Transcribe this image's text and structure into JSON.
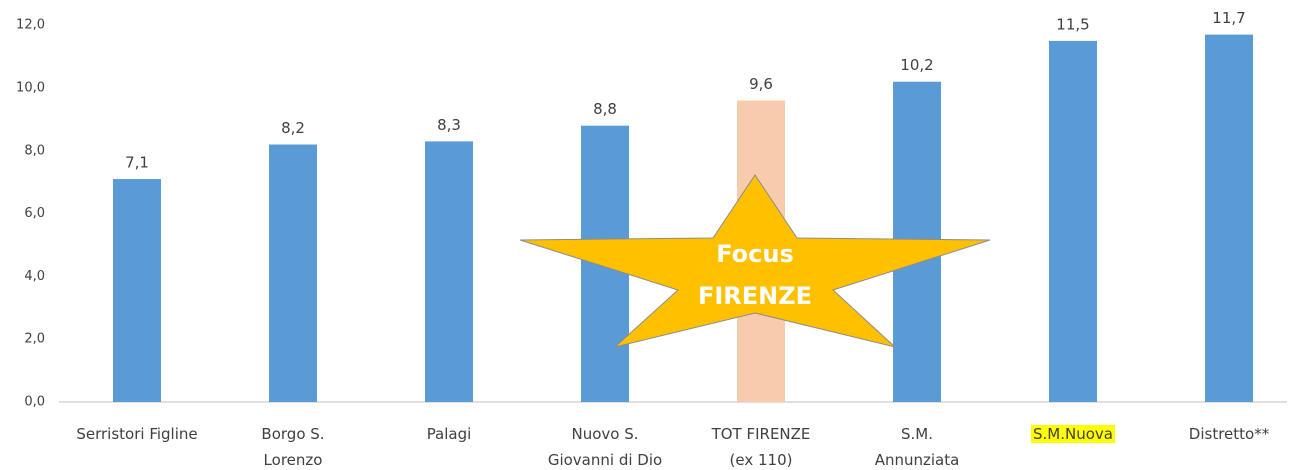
{
  "chart_data": {
    "type": "bar",
    "categories": [
      "Serristori Figline",
      "Borgo S.\nLorenzo",
      "Palagi",
      "Nuovo S.\nGiovanni di Dio",
      "TOT FIRENZE\n(ex 110)",
      "S.M.\nAnnunziata",
      "S.M.Nuova",
      "Distretto**"
    ],
    "values": [
      7.1,
      8.2,
      8.3,
      8.8,
      9.6,
      10.2,
      11.5,
      11.7
    ],
    "value_labels": [
      "7,1",
      "8,2",
      "8,3",
      "8,8",
      "9,6",
      "10,2",
      "11,5",
      "11,7"
    ],
    "colors": [
      "#5b9bd5",
      "#5b9bd5",
      "#5b9bd5",
      "#5b9bd5",
      "#f8cbad",
      "#5b9bd5",
      "#5b9bd5",
      "#5b9bd5"
    ],
    "highlighted_category": 6,
    "ylim": [
      0,
      12
    ],
    "yticks": [
      {
        "value": 0,
        "label": "0,0"
      },
      {
        "value": 2,
        "label": "2,0"
      },
      {
        "value": 4,
        "label": "4,0"
      },
      {
        "value": 6,
        "label": "6,0"
      },
      {
        "value": 8,
        "label": "8,0"
      },
      {
        "value": 10,
        "label": "10,0"
      },
      {
        "value": 12,
        "label": "12,0"
      }
    ],
    "annotation": [
      "Focus",
      "FIRENZE"
    ]
  }
}
